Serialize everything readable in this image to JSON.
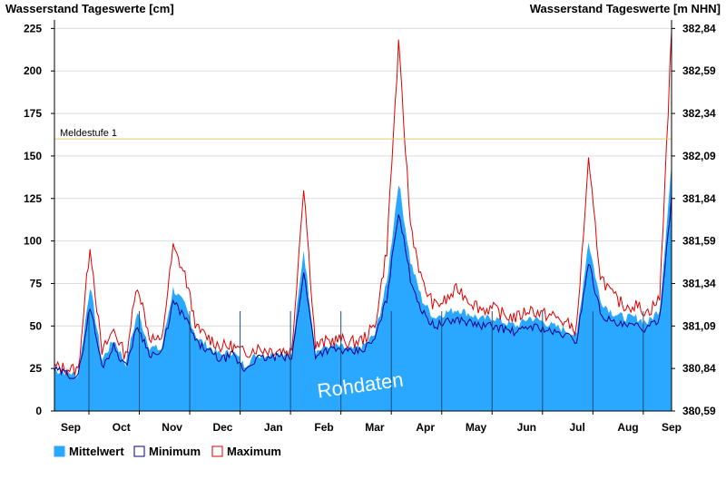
{
  "chart_data": {
    "type": "area",
    "ylabel_left": "Wasserstand Tageswerte [cm]",
    "ylabel_right": "Wasserstand Tageswerte [m NHN]",
    "y_left_ticks": [
      "0",
      "25",
      "50",
      "75",
      "100",
      "125",
      "150",
      "175",
      "200",
      "225"
    ],
    "y_right_ticks": [
      "380,59",
      "380,84",
      "381,09",
      "381,34",
      "381,59",
      "381,84",
      "382,09",
      "382,34",
      "382,59",
      "382,84"
    ],
    "ylim": [
      0,
      230
    ],
    "x_month_labels": [
      "Sep",
      "Oct",
      "Nov",
      "Dec",
      "Jan",
      "Feb",
      "Mar",
      "Apr",
      "May",
      "Jun",
      "Jul",
      "Aug",
      "Sep"
    ],
    "reference_line": {
      "label": "Meldestufe 1",
      "value": 160,
      "color": "#e6c870"
    },
    "watermark": "Rohdaten",
    "series": [
      {
        "name": "Mittelwert",
        "color": "#2aa7ff"
      },
      {
        "name": "Minimum",
        "color": "#00008b"
      },
      {
        "name": "Maximum",
        "color": "#e00000"
      }
    ],
    "weekly_profile": {
      "x_unit": "week",
      "weeks": [
        0,
        1,
        2,
        3,
        4,
        5,
        6,
        7,
        8,
        9,
        10,
        11,
        12,
        13,
        14,
        15,
        16,
        17,
        18,
        19,
        20,
        21,
        22,
        23,
        24,
        25,
        26,
        27,
        28,
        29,
        30,
        31,
        32,
        33,
        34,
        35,
        36,
        37,
        38,
        39,
        40,
        41,
        42,
        43,
        44,
        45,
        46,
        47,
        48,
        49,
        50,
        51,
        52
      ],
      "mittelwert": [
        24,
        23,
        21,
        74,
        30,
        42,
        28,
        58,
        38,
        36,
        72,
        62,
        43,
        38,
        33,
        35,
        27,
        33,
        33,
        34,
        33,
        95,
        35,
        38,
        38,
        36,
        38,
        45,
        75,
        135,
        88,
        65,
        55,
        58,
        60,
        57,
        54,
        55,
        52,
        50,
        55,
        53,
        50,
        48,
        44,
        100,
        65,
        58,
        55,
        55,
        52,
        60,
        145
      ],
      "minimum": [
        24,
        22,
        20,
        62,
        26,
        38,
        26,
        50,
        34,
        33,
        64,
        55,
        40,
        35,
        30,
        33,
        24,
        31,
        31,
        32,
        31,
        82,
        33,
        36,
        36,
        34,
        36,
        42,
        66,
        118,
        78,
        58,
        50,
        52,
        54,
        52,
        50,
        50,
        48,
        46,
        50,
        49,
        46,
        45,
        41,
        88,
        58,
        52,
        50,
        50,
        48,
        55,
        125
      ],
      "maximum": [
        26,
        25,
        24,
        98,
        34,
        48,
        32,
        75,
        44,
        40,
        96,
        80,
        48,
        43,
        38,
        38,
        34,
        37,
        36,
        36,
        35,
        133,
        38,
        41,
        42,
        40,
        42,
        50,
        95,
        215,
        110,
        75,
        62,
        65,
        72,
        65,
        60,
        60,
        56,
        55,
        60,
        57,
        56,
        52,
        48,
        146,
        80,
        68,
        62,
        62,
        58,
        66,
        222
      ]
    }
  },
  "legend": [
    {
      "label": "Mittelwert",
      "color": "#2aa7ff"
    },
    {
      "label": "Minimum",
      "color": "#000080"
    },
    {
      "label": "Maximum",
      "color": "#e00000"
    }
  ]
}
